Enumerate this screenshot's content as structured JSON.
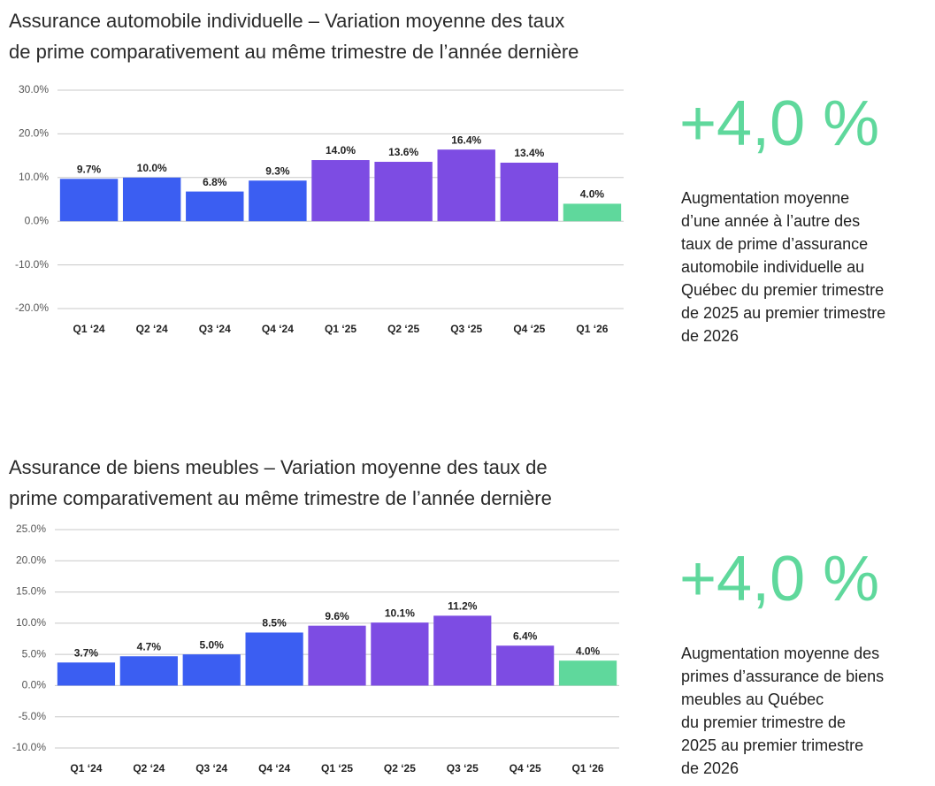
{
  "chart_data": [
    {
      "type": "bar",
      "title": [
        "Assurance automobile individuelle – Variation moyenne des taux",
        "de prime comparativement au même trimestre de l’année dernière"
      ],
      "categories": [
        "Q1 ‘24",
        "Q2 ‘24",
        "Q3 ‘24",
        "Q4 ‘24",
        "Q1 ‘25",
        "Q2 ‘25",
        "Q3 ‘25",
        "Q4 ‘25",
        "Q1 ‘26"
      ],
      "values": [
        9.7,
        10.0,
        6.8,
        9.3,
        14.0,
        13.6,
        16.4,
        13.4,
        4.0
      ],
      "value_labels": [
        "9.7%",
        "10.0%",
        "6.8%",
        "9.3%",
        "14.0%",
        "13.6%",
        "16.4%",
        "13.4%",
        "4.0%"
      ],
      "colors": [
        "#3b5ef2",
        "#3b5ef2",
        "#3b5ef2",
        "#3b5ef2",
        "#7d4ce3",
        "#7d4ce3",
        "#7d4ce3",
        "#7d4ce3",
        "#5fd89c"
      ],
      "ylim": [
        -20,
        30
      ],
      "yticks": [
        {
          "value": -20,
          "label": "-20.0%"
        },
        {
          "value": -10,
          "label": "-10.0%"
        },
        {
          "value": 0,
          "label": "0.0%"
        },
        {
          "value": 10,
          "label": "10.0%"
        },
        {
          "value": 20,
          "label": "20.0%"
        },
        {
          "value": 30,
          "label": "30.0%"
        }
      ],
      "grid": true,
      "highlight": {
        "value": "+4,0 %",
        "description": [
          "Augmentation moyenne",
          "d’une année à l’autre des",
          "taux de prime d’assurance",
          "automobile individuelle au",
          "Québec du premier trimestre",
          "de 2025 au premier trimestre",
          "de 2026"
        ]
      }
    },
    {
      "type": "bar",
      "title": [
        "Assurance de biens meubles – Variation moyenne des taux de",
        "prime comparativement au même trimestre de l’année dernière"
      ],
      "categories": [
        "Q1 ‘24",
        "Q2 ‘24",
        "Q3 ‘24",
        "Q4 ‘24",
        "Q1 ‘25",
        "Q2 ‘25",
        "Q3 ‘25",
        "Q4 ‘25",
        "Q1 ‘26"
      ],
      "values": [
        3.7,
        4.7,
        5.0,
        8.5,
        9.6,
        10.1,
        11.2,
        6.4,
        4.0
      ],
      "value_labels": [
        "3.7%",
        "4.7%",
        "5.0%",
        "8.5%",
        "9.6%",
        "10.1%",
        "11.2%",
        "6.4%",
        "4.0%"
      ],
      "colors": [
        "#3b5ef2",
        "#3b5ef2",
        "#3b5ef2",
        "#3b5ef2",
        "#7d4ce3",
        "#7d4ce3",
        "#7d4ce3",
        "#7d4ce3",
        "#5fd89c"
      ],
      "ylim": [
        -10,
        25
      ],
      "yticks": [
        {
          "value": -10,
          "label": "-10.0%"
        },
        {
          "value": -5,
          "label": "-5.0%"
        },
        {
          "value": 0,
          "label": "0.0%"
        },
        {
          "value": 5,
          "label": "5.0%"
        },
        {
          "value": 10,
          "label": "10.0%"
        },
        {
          "value": 15,
          "label": "15.0%"
        },
        {
          "value": 20,
          "label": "20.0%"
        },
        {
          "value": 25,
          "label": "25.0%"
        }
      ],
      "grid": true,
      "highlight": {
        "value": "+4,0 %",
        "description": [
          "Augmentation moyenne des",
          "primes d’assurance de biens",
          "meubles au Québec",
          "du premier trimestre de",
          "2025 au premier trimestre",
          "de 2026"
        ]
      }
    }
  ]
}
